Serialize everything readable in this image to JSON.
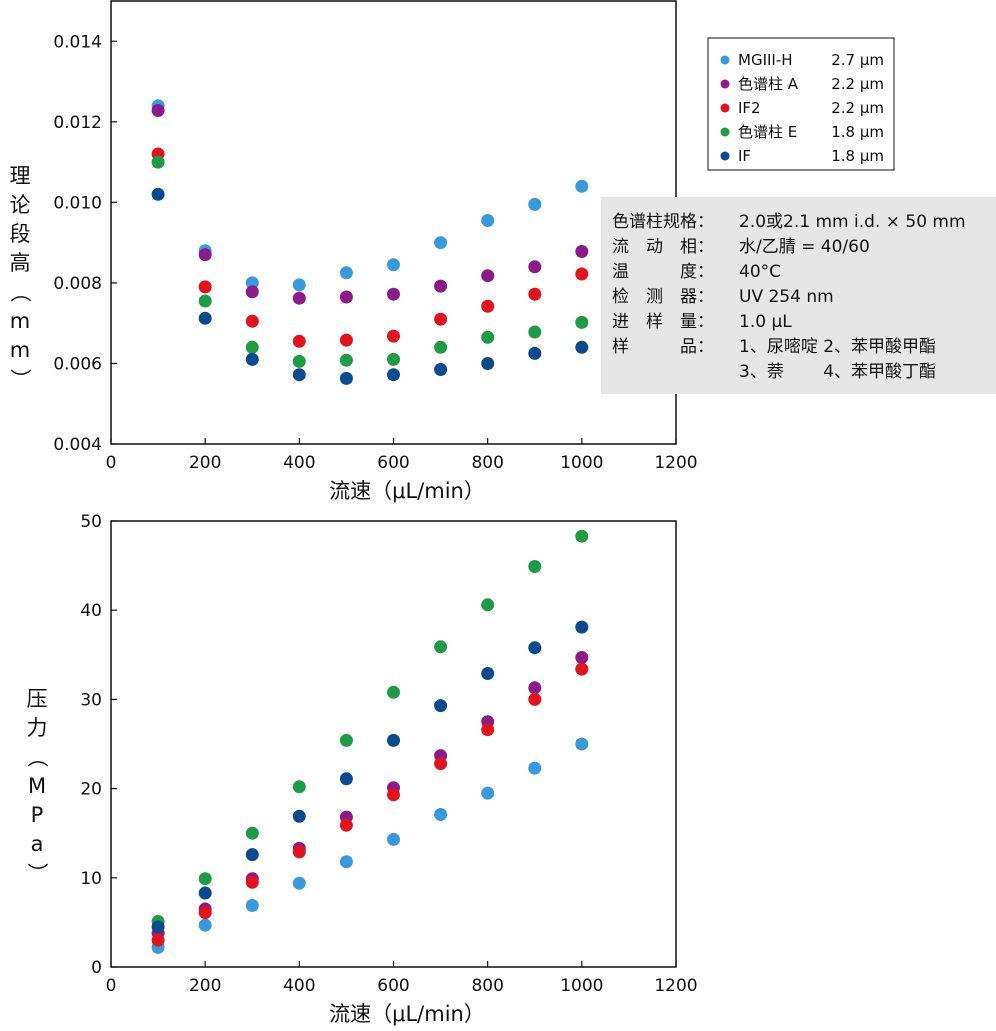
{
  "chart_data": [
    {
      "type": "scatter",
      "xlabel": "流速（μL/min）",
      "ylabel": "理论段高（mm）",
      "xlim": [
        0,
        1200
      ],
      "ylim": [
        0.004,
        0.015
      ],
      "x_ticks": [
        "0",
        "200",
        "400",
        "600",
        "800",
        "1000",
        "1200"
      ],
      "y_ticks": [
        "0.004",
        "0.006",
        "0.008",
        "0.010",
        "0.012",
        "0.014"
      ],
      "x": [
        100,
        200,
        300,
        400,
        500,
        600,
        700,
        800,
        900,
        1000
      ],
      "series": [
        {
          "name": "MGIII-H",
          "size": "2.7 μm",
          "color": "#3a9ad9",
          "values": [
            0.0124,
            0.0088,
            0.008,
            0.00795,
            0.00825,
            0.00845,
            0.009,
            0.00955,
            0.00995,
            0.0104
          ]
        },
        {
          "name": "色谱柱 A",
          "size": "2.2 μm",
          "color": "#8b1a8b",
          "values": [
            0.01228,
            0.0087,
            0.00778,
            0.00762,
            0.00765,
            0.00772,
            0.00792,
            0.00818,
            0.0084,
            0.00878
          ]
        },
        {
          "name": "IF2",
          "size": "2.2 μm",
          "color": "#e0141e",
          "values": [
            0.0112,
            0.0079,
            0.00705,
            0.00655,
            0.00658,
            0.00668,
            0.0071,
            0.00742,
            0.00772,
            0.00822
          ]
        },
        {
          "name": "色谱柱 E",
          "size": "1.8 μm",
          "color": "#1f9a45",
          "values": [
            0.011,
            0.00755,
            0.0064,
            0.00605,
            0.00608,
            0.0061,
            0.0064,
            0.00665,
            0.00678,
            0.00702
          ]
        },
        {
          "name": "IF",
          "size": "1.8 μm",
          "color": "#0b4a8c",
          "values": [
            0.0102,
            0.00712,
            0.0061,
            0.00572,
            0.00563,
            0.00572,
            0.00585,
            0.006,
            0.00625,
            0.0064
          ]
        }
      ],
      "legend_position": "top-right"
    },
    {
      "type": "scatter",
      "xlabel": "流速（μL/min）",
      "ylabel": "压力（MPa）",
      "xlim": [
        0,
        1200
      ],
      "ylim": [
        0,
        50
      ],
      "x_ticks": [
        "0",
        "200",
        "400",
        "600",
        "800",
        "1000",
        "1200"
      ],
      "y_ticks": [
        "0",
        "10",
        "20",
        "30",
        "40",
        "50"
      ],
      "x": [
        100,
        200,
        300,
        400,
        500,
        600,
        700,
        800,
        900,
        1000
      ],
      "series": [
        {
          "name": "MGIII-H",
          "color": "#3a9ad9",
          "values": [
            2.2,
            4.7,
            6.9,
            9.4,
            11.8,
            14.3,
            17.1,
            19.5,
            22.3,
            25.0
          ]
        },
        {
          "name": "色谱柱 A",
          "color": "#8b1a8b",
          "values": [
            3.8,
            6.5,
            9.9,
            13.3,
            16.8,
            20.1,
            23.7,
            27.5,
            31.3,
            34.7
          ]
        },
        {
          "name": "IF2",
          "color": "#e0141e",
          "values": [
            3.0,
            6.1,
            9.5,
            12.9,
            15.9,
            19.3,
            22.8,
            26.6,
            30.0,
            33.4
          ]
        },
        {
          "name": "色谱柱 E",
          "color": "#1f9a45",
          "values": [
            5.1,
            9.9,
            15.0,
            20.2,
            25.4,
            30.8,
            35.9,
            40.6,
            44.9,
            48.3
          ]
        },
        {
          "name": "IF",
          "color": "#0b4a8c",
          "values": [
            4.5,
            8.3,
            12.6,
            16.9,
            21.1,
            25.4,
            29.3,
            32.9,
            35.8,
            38.1
          ]
        }
      ]
    }
  ],
  "conditions": [
    {
      "label": "色谱柱规格：",
      "value": "2.0或2.1 mm i.d. × 50 mm"
    },
    {
      "label": "流　动　相：",
      "value": "水/乙腈 = 40/60"
    },
    {
      "label": "温　　　度：",
      "value": "40°C"
    },
    {
      "label": "检　测　器：",
      "value": "UV 254 nm"
    },
    {
      "label": "进　样　量：",
      "value": "1.0 μL"
    },
    {
      "label": "样　　　品：",
      "value": "1、尿嘧啶 2、苯甲酸甲酯"
    },
    {
      "label": "",
      "value": "3、萘　　 4、苯甲酸丁酯"
    }
  ],
  "colors": {
    "conditions_box_bg": "#e6e6e6",
    "frame": "#111111"
  }
}
